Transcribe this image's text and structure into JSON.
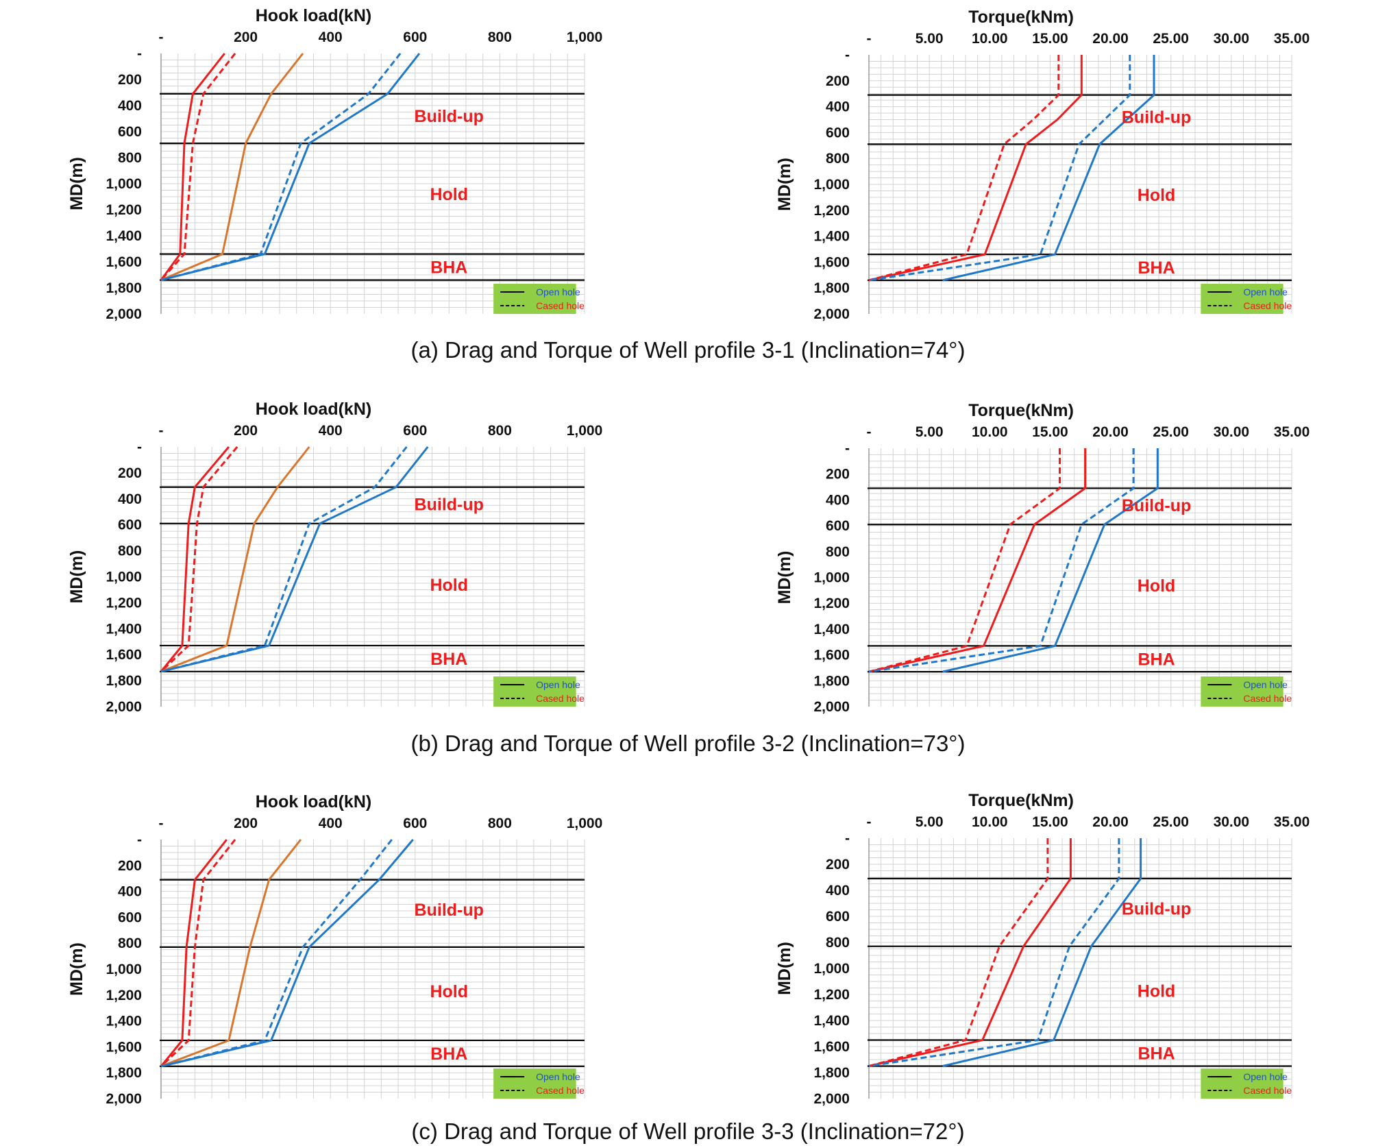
{
  "colors": {
    "red": "#ee1c1c",
    "orange": "#d9762e",
    "blue": "#1f78c8",
    "grid": "#d3d3d3",
    "boundary": "#000000",
    "legend_bg": "#8fce45",
    "legend_open_text": "#1f4fd0",
    "legend_cased_text": "#ee1c1c",
    "zone_label": "#ee1c1c"
  },
  "chart_data": [
    {
      "id": "a-hook",
      "type": "line",
      "title": "Hook load(kN)",
      "xlabel": "Hook load(kN)",
      "ylabel": "MD(m)",
      "xlim": [
        0,
        1000
      ],
      "ylim": [
        0,
        2000
      ],
      "y_inverted": true,
      "x_ticks": [
        "-",
        "200",
        "400",
        "600",
        "800",
        "1,000"
      ],
      "y_ticks": [
        "-",
        "200",
        "400",
        "600",
        "800",
        "1,000",
        "1,200",
        "1,400",
        "1,600",
        "1,800",
        "2,000"
      ],
      "boundaries": [
        310,
        690,
        1540,
        1740
      ],
      "zones": [
        {
          "label": "Build-up",
          "md": 480
        },
        {
          "label": "Hold",
          "md": 1080
        },
        {
          "label": "BHA",
          "md": 1640
        }
      ],
      "legend": {
        "open": "Open hole",
        "cased": "Cased hole"
      },
      "series": [
        {
          "color": "red",
          "dash": false,
          "points": [
            [
              150,
              0
            ],
            [
              75,
              310
            ],
            [
              55,
              690
            ],
            [
              45,
              1540
            ],
            [
              0,
              1740
            ]
          ]
        },
        {
          "color": "red",
          "dash": true,
          "points": [
            [
              175,
              0
            ],
            [
              100,
              310
            ],
            [
              75,
              690
            ],
            [
              55,
              1540
            ],
            [
              0,
              1740
            ]
          ]
        },
        {
          "color": "orange",
          "dash": false,
          "points": [
            [
              335,
              0
            ],
            [
              260,
              310
            ],
            [
              200,
              690
            ],
            [
              145,
              1540
            ],
            [
              0,
              1740
            ]
          ]
        },
        {
          "color": "blue",
          "dash": false,
          "points": [
            [
              610,
              0
            ],
            [
              535,
              310
            ],
            [
              350,
              690
            ],
            [
              245,
              1540
            ],
            [
              0,
              1740
            ]
          ]
        },
        {
          "color": "blue",
          "dash": true,
          "points": [
            [
              565,
              0
            ],
            [
              490,
              310
            ],
            [
              330,
              690
            ],
            [
              235,
              1540
            ],
            [
              0,
              1740
            ]
          ]
        }
      ]
    },
    {
      "id": "a-torque",
      "type": "line",
      "title": "Torque(kNm)",
      "xlabel": "Torque(kNm)",
      "ylabel": "MD(m)",
      "xlim": [
        0,
        35
      ],
      "ylim": [
        0,
        2000
      ],
      "y_inverted": true,
      "x_ticks": [
        "-",
        "5.00",
        "10.00",
        "15.00",
        "20.00",
        "25.00",
        "30.00",
        "35.00"
      ],
      "y_ticks": [
        "-",
        "200",
        "400",
        "600",
        "800",
        "1,000",
        "1,200",
        "1,400",
        "1,600",
        "1,800",
        "2,000"
      ],
      "boundaries": [
        310,
        690,
        1540,
        1740
      ],
      "zones": [
        {
          "label": "Build-up",
          "md": 480
        },
        {
          "label": "Hold",
          "md": 1080
        },
        {
          "label": "BHA",
          "md": 1640
        }
      ],
      "legend": {
        "open": "Open hole",
        "cased": "Cased hole"
      },
      "series": [
        {
          "color": "red",
          "dash": false,
          "points": [
            [
              17.6,
              0
            ],
            [
              17.6,
              310
            ],
            [
              15.6,
              500
            ],
            [
              13.0,
              690
            ],
            [
              9.6,
              1540
            ],
            [
              0,
              1740
            ]
          ]
        },
        {
          "color": "red",
          "dash": true,
          "points": [
            [
              15.7,
              0
            ],
            [
              15.7,
              310
            ],
            [
              13.6,
              500
            ],
            [
              11.2,
              690
            ],
            [
              8.1,
              1540
            ],
            [
              0,
              1740
            ]
          ]
        },
        {
          "color": "blue",
          "dash": false,
          "points": [
            [
              23.6,
              0
            ],
            [
              23.6,
              310
            ],
            [
              19.1,
              690
            ],
            [
              15.4,
              1540
            ],
            [
              6.1,
              1740
            ]
          ]
        },
        {
          "color": "blue",
          "dash": true,
          "points": [
            [
              21.6,
              0
            ],
            [
              21.6,
              310
            ],
            [
              17.4,
              690
            ],
            [
              14.2,
              1540
            ],
            [
              0,
              1740
            ]
          ]
        }
      ]
    },
    {
      "id": "b-hook",
      "type": "line",
      "title": "Hook load(kN)",
      "xlabel": "Hook load(kN)",
      "ylabel": "MD(m)",
      "xlim": [
        0,
        1000
      ],
      "ylim": [
        0,
        2000
      ],
      "y_inverted": true,
      "x_ticks": [
        "-",
        "200",
        "400",
        "600",
        "800",
        "1,000"
      ],
      "y_ticks": [
        "-",
        "200",
        "400",
        "600",
        "800",
        "1,000",
        "1,200",
        "1,400",
        "1,600",
        "1,800",
        "2,000"
      ],
      "boundaries": [
        310,
        590,
        1530,
        1730
      ],
      "zones": [
        {
          "label": "Build-up",
          "md": 440
        },
        {
          "label": "Hold",
          "md": 1060
        },
        {
          "label": "BHA",
          "md": 1630
        }
      ],
      "legend": {
        "open": "Open hole",
        "cased": "Cased hole"
      },
      "series": [
        {
          "color": "red",
          "dash": false,
          "points": [
            [
              160,
              0
            ],
            [
              80,
              310
            ],
            [
              65,
              590
            ],
            [
              50,
              1530
            ],
            [
              0,
              1730
            ]
          ]
        },
        {
          "color": "red",
          "dash": true,
          "points": [
            [
              180,
              0
            ],
            [
              100,
              310
            ],
            [
              85,
              590
            ],
            [
              65,
              1530
            ],
            [
              0,
              1730
            ]
          ]
        },
        {
          "color": "orange",
          "dash": false,
          "points": [
            [
              350,
              0
            ],
            [
              275,
              310
            ],
            [
              220,
              590
            ],
            [
              155,
              1530
            ],
            [
              0,
              1730
            ]
          ]
        },
        {
          "color": "blue",
          "dash": false,
          "points": [
            [
              630,
              0
            ],
            [
              555,
              310
            ],
            [
              375,
              590
            ],
            [
              255,
              1530
            ],
            [
              0,
              1730
            ]
          ]
        },
        {
          "color": "blue",
          "dash": true,
          "points": [
            [
              580,
              0
            ],
            [
              505,
              310
            ],
            [
              350,
              590
            ],
            [
              245,
              1530
            ],
            [
              0,
              1730
            ]
          ]
        }
      ]
    },
    {
      "id": "b-torque",
      "type": "line",
      "title": "Torque(kNm)",
      "xlabel": "Torque(kNm)",
      "ylabel": "MD(m)",
      "xlim": [
        0,
        35
      ],
      "ylim": [
        0,
        2000
      ],
      "y_inverted": true,
      "x_ticks": [
        "-",
        "5.00",
        "10.00",
        "15.00",
        "20.00",
        "25.00",
        "30.00",
        "35.00"
      ],
      "y_ticks": [
        "-",
        "200",
        "400",
        "600",
        "800",
        "1,000",
        "1,200",
        "1,400",
        "1,600",
        "1,800",
        "2,000"
      ],
      "boundaries": [
        310,
        590,
        1530,
        1730
      ],
      "zones": [
        {
          "label": "Build-up",
          "md": 440
        },
        {
          "label": "Hold",
          "md": 1060
        },
        {
          "label": "BHA",
          "md": 1630
        }
      ],
      "legend": {
        "open": "Open hole",
        "cased": "Cased hole"
      },
      "series": [
        {
          "color": "red",
          "dash": false,
          "points": [
            [
              17.9,
              0
            ],
            [
              17.9,
              310
            ],
            [
              13.7,
              590
            ],
            [
              9.5,
              1530
            ],
            [
              0,
              1730
            ]
          ]
        },
        {
          "color": "red",
          "dash": true,
          "points": [
            [
              15.8,
              0
            ],
            [
              15.8,
              310
            ],
            [
              11.7,
              590
            ],
            [
              8.1,
              1530
            ],
            [
              0,
              1730
            ]
          ]
        },
        {
          "color": "blue",
          "dash": false,
          "points": [
            [
              23.9,
              0
            ],
            [
              23.9,
              310
            ],
            [
              19.5,
              590
            ],
            [
              15.4,
              1530
            ],
            [
              6.1,
              1730
            ]
          ]
        },
        {
          "color": "blue",
          "dash": true,
          "points": [
            [
              21.9,
              0
            ],
            [
              21.9,
              310
            ],
            [
              17.6,
              590
            ],
            [
              14.2,
              1530
            ],
            [
              0,
              1730
            ]
          ]
        }
      ]
    },
    {
      "id": "c-hook",
      "type": "line",
      "title": "Hook load(kN)",
      "xlabel": "Hook load(kN)",
      "ylabel": "MD(m)",
      "xlim": [
        0,
        1000
      ],
      "ylim": [
        0,
        2000
      ],
      "y_inverted": true,
      "x_ticks": [
        "-",
        "200",
        "400",
        "600",
        "800",
        "1,000"
      ],
      "y_ticks": [
        "-",
        "200",
        "400",
        "600",
        "800",
        "1,000",
        "1,200",
        "1,400",
        "1,600",
        "1,800",
        "2,000"
      ],
      "boundaries": [
        310,
        830,
        1550,
        1750
      ],
      "zones": [
        {
          "label": "Build-up",
          "md": 540
        },
        {
          "label": "Hold",
          "md": 1170
        },
        {
          "label": "BHA",
          "md": 1650
        }
      ],
      "legend": {
        "open": "Open hole",
        "cased": "Cased hole"
      },
      "series": [
        {
          "color": "red",
          "dash": false,
          "points": [
            [
              155,
              0
            ],
            [
              80,
              310
            ],
            [
              60,
              830
            ],
            [
              50,
              1550
            ],
            [
              0,
              1750
            ]
          ]
        },
        {
          "color": "red",
          "dash": true,
          "points": [
            [
              175,
              0
            ],
            [
              100,
              310
            ],
            [
              80,
              830
            ],
            [
              65,
              1550
            ],
            [
              0,
              1750
            ]
          ]
        },
        {
          "color": "orange",
          "dash": false,
          "points": [
            [
              330,
              0
            ],
            [
              255,
              310
            ],
            [
              210,
              830
            ],
            [
              160,
              1550
            ],
            [
              0,
              1750
            ]
          ]
        },
        {
          "color": "blue",
          "dash": false,
          "points": [
            [
              595,
              0
            ],
            [
              515,
              310
            ],
            [
              350,
              830
            ],
            [
              260,
              1550
            ],
            [
              0,
              1750
            ]
          ]
        },
        {
          "color": "blue",
          "dash": true,
          "points": [
            [
              545,
              0
            ],
            [
              470,
              310
            ],
            [
              335,
              830
            ],
            [
              245,
              1550
            ],
            [
              0,
              1750
            ]
          ]
        }
      ]
    },
    {
      "id": "c-torque",
      "type": "line",
      "title": "Torque(kNm)",
      "xlabel": "Torque(kNm)",
      "ylabel": "MD(m)",
      "xlim": [
        0,
        35
      ],
      "ylim": [
        0,
        2000
      ],
      "y_inverted": true,
      "x_ticks": [
        "-",
        "5.00",
        "10.00",
        "15.00",
        "20.00",
        "25.00",
        "30.00",
        "35.00"
      ],
      "y_ticks": [
        "-",
        "200",
        "400",
        "600",
        "800",
        "1,000",
        "1,200",
        "1,400",
        "1,600",
        "1,800",
        "2,000"
      ],
      "boundaries": [
        310,
        830,
        1550,
        1750
      ],
      "zones": [
        {
          "label": "Build-up",
          "md": 540
        },
        {
          "label": "Hold",
          "md": 1170
        },
        {
          "label": "BHA",
          "md": 1650
        }
      ],
      "legend": {
        "open": "Open hole",
        "cased": "Cased hole"
      },
      "series": [
        {
          "color": "red",
          "dash": false,
          "points": [
            [
              16.7,
              0
            ],
            [
              16.7,
              310
            ],
            [
              12.8,
              830
            ],
            [
              9.4,
              1550
            ],
            [
              0,
              1750
            ]
          ]
        },
        {
          "color": "red",
          "dash": true,
          "points": [
            [
              14.8,
              0
            ],
            [
              14.8,
              310
            ],
            [
              10.8,
              830
            ],
            [
              8.0,
              1550
            ],
            [
              0,
              1750
            ]
          ]
        },
        {
          "color": "blue",
          "dash": false,
          "points": [
            [
              22.5,
              0
            ],
            [
              22.5,
              310
            ],
            [
              18.4,
              830
            ],
            [
              15.3,
              1550
            ],
            [
              6.1,
              1750
            ]
          ]
        },
        {
          "color": "blue",
          "dash": true,
          "points": [
            [
              20.7,
              0
            ],
            [
              20.7,
              310
            ],
            [
              16.6,
              830
            ],
            [
              14.0,
              1550
            ],
            [
              0,
              1750
            ]
          ]
        }
      ]
    }
  ],
  "captions": [
    "(a) Drag and Torque of Well profile 3-1 (Inclination=74°)",
    "(b) Drag and Torque of Well profile 3-2 (Inclination=73°)",
    "(c) Drag and Torque of Well profile 3-3 (Inclination=72°)"
  ]
}
